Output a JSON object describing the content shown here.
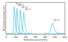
{
  "chart_data": {
    "type": "line",
    "x_label": "Retention period (min)",
    "y_label": "Absorbance (arbitrary units)",
    "xlim": [
      0,
      600
    ],
    "xticks": [
      0,
      100,
      200,
      300,
      400,
      500,
      600
    ],
    "ylim": [
      0,
      1.15
    ],
    "tick_labels": "x",
    "grid": false,
    "color": "#4fc3df",
    "series": [
      {
        "name": "70 °C",
        "x": [
          0,
          50,
          70,
          78,
          85,
          92,
          100,
          115,
          140,
          600
        ],
        "values": [
          0,
          0,
          0.05,
          0.55,
          1.0,
          0.65,
          0.25,
          0.06,
          0.01,
          0
        ]
      },
      {
        "name": "60 °C",
        "x": [
          0,
          80,
          98,
          106,
          112,
          118,
          128,
          145,
          170,
          600
        ],
        "values": [
          0,
          0,
          0.06,
          0.5,
          0.95,
          0.6,
          0.22,
          0.05,
          0.01,
          0
        ]
      },
      {
        "name": "50 °C",
        "x": [
          0,
          110,
          130,
          140,
          147,
          155,
          165,
          185,
          210,
          600
        ],
        "values": [
          0,
          0,
          0.05,
          0.45,
          0.88,
          0.55,
          0.2,
          0.05,
          0.01,
          0
        ]
      },
      {
        "name": "40 °C",
        "x": [
          0,
          140,
          162,
          173,
          181,
          190,
          202,
          225,
          250,
          600
        ],
        "values": [
          0,
          0,
          0.05,
          0.42,
          0.8,
          0.5,
          0.18,
          0.04,
          0.01,
          0
        ]
      },
      {
        "name": "20 °C",
        "x": [
          0,
          400,
          440,
          460,
          475,
          490,
          510,
          540,
          570,
          600
        ],
        "values": [
          0,
          0,
          0.03,
          0.18,
          0.4,
          0.25,
          0.08,
          0.02,
          0.01,
          0
        ]
      }
    ]
  }
}
